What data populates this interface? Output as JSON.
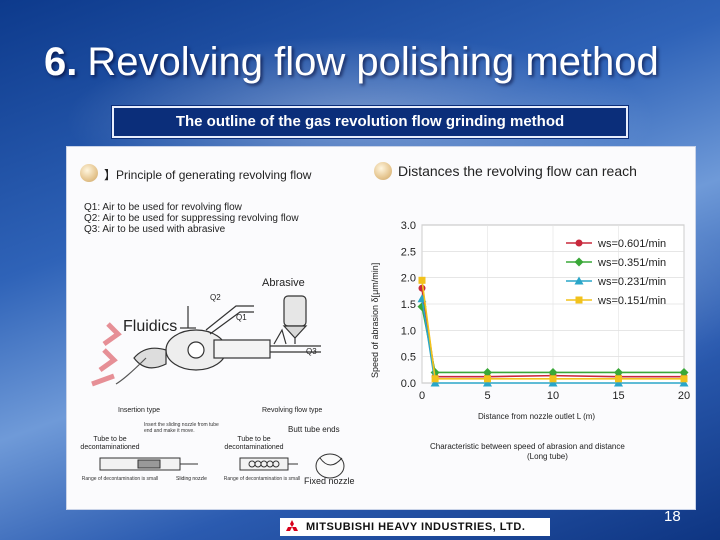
{
  "slide": {
    "number": "6.",
    "title": "Revolving flow polishing method",
    "subtitle": "The outline of the gas revolution flow grinding method",
    "page_number": "18"
  },
  "left": {
    "heading": "Principle of generating revolving flow",
    "notes": [
      "Q1: Air to be used for revolving flow",
      "Q2: Air to be used for suppressing revolving flow",
      "Q3: Air to be used with abrasive"
    ],
    "abrasive_label": "Abrasive",
    "fluidics_label": "Fluidics",
    "q2": "Q2",
    "q1": "Q1",
    "q3": "Q3",
    "insertion_type": "Insertion type",
    "revolving_flow_type": "Revolving flow type",
    "insert_note": "Insert the sliding nozzle from tube end and make it move.",
    "butt_tube_ends": "Butt tube ends",
    "tube_decon_1": "Tube to be decontaminationed",
    "tube_decon_2": "Tube to be decontaminationed",
    "range_note_1": "Range of decontamination is small",
    "sliding_nozzle": "Sliding nozzle",
    "range_note_2": "Range of decontamination is small",
    "fixed_nozzle": "Fixed nozzle"
  },
  "right": {
    "heading": "Distances the revolving flow can reach",
    "caption_1": "Characteristic between speed of abrasion and distance",
    "caption_2": "(Long tube)"
  },
  "footer": {
    "company": "MITSUBISHI HEAVY INDUSTRIES, LTD."
  },
  "chart_data": {
    "type": "line",
    "ylabel": "Speed of abrasion δ[μm/min]",
    "xlabel": "Distance from nozzle outlet L (m)",
    "x": [
      0,
      1,
      5,
      10,
      15,
      20
    ],
    "xlim": [
      0,
      20
    ],
    "ylim": [
      0,
      3.0
    ],
    "xticks": [
      0,
      5,
      10,
      15,
      20
    ],
    "yticks": [
      0.0,
      0.5,
      1.0,
      1.5,
      2.0,
      2.5,
      3.0
    ],
    "legend_position": "top-right",
    "series": [
      {
        "name": "ws=0.601/min",
        "color": "#c8283c",
        "marker": "circle",
        "values": [
          1.8,
          0.12,
          0.12,
          0.14,
          0.12,
          0.12
        ]
      },
      {
        "name": "ws=0.351/min",
        "color": "#3aa838",
        "marker": "diamond",
        "values": [
          1.45,
          0.2,
          0.2,
          0.2,
          0.2,
          0.2
        ]
      },
      {
        "name": "ws=0.231/min",
        "color": "#2aa6c9",
        "marker": "triangle",
        "values": [
          1.6,
          0.0,
          0.0,
          0.0,
          0.0,
          0.0
        ]
      },
      {
        "name": "ws=0.151/min",
        "color": "#f2c21c",
        "marker": "square",
        "values": [
          1.95,
          0.08,
          0.08,
          0.08,
          0.08,
          0.08
        ]
      }
    ]
  }
}
